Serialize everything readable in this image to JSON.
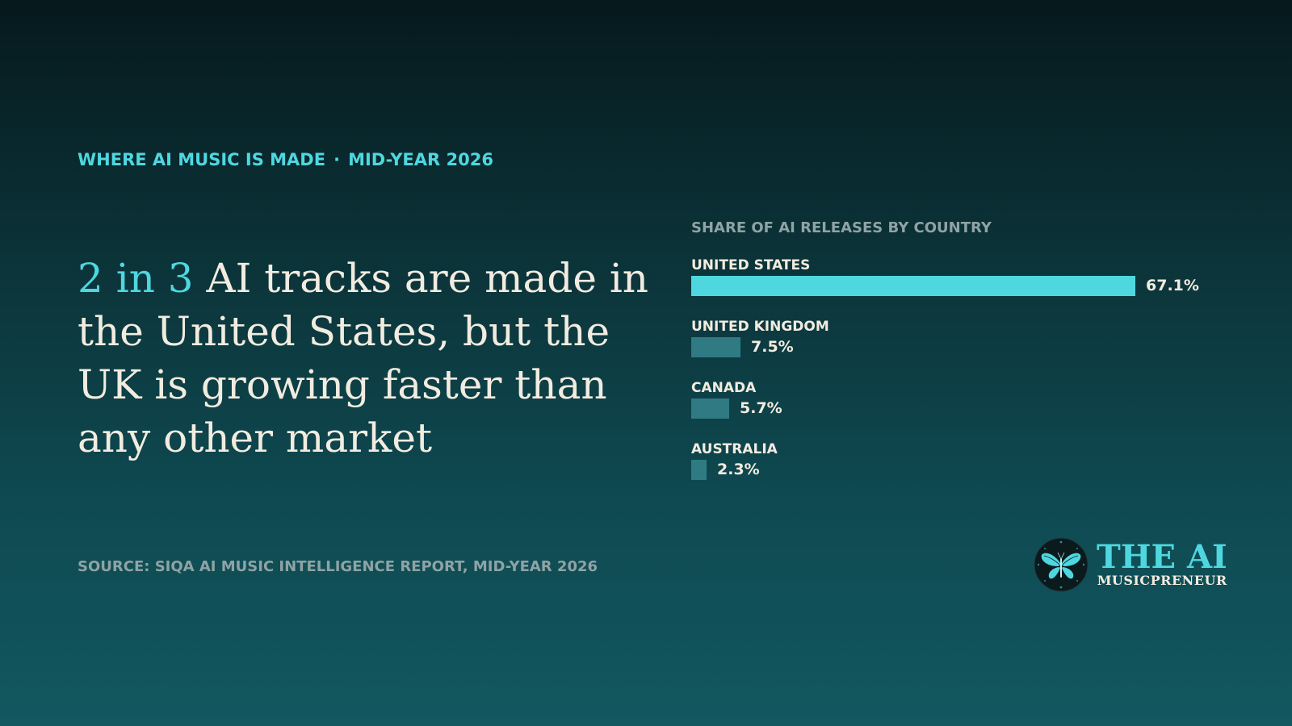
{
  "header": {
    "kicker_left": "WHERE AI MUSIC IS MADE",
    "kicker_sep": "·",
    "kicker_right": "MID-YEAR 2026"
  },
  "headline": {
    "accent": "2 in 3",
    "rest": " AI tracks are made in the United States, but the UK is growing faster than any other market"
  },
  "source": "SOURCE: SIQA AI MUSIC INTELLIGENCE REPORT, MID-YEAR 2026",
  "chart_data": {
    "type": "bar",
    "orientation": "horizontal",
    "title": "SHARE OF AI RELEASES BY COUNTRY",
    "categories": [
      "UNITED STATES",
      "UNITED KINGDOM",
      "CANADA",
      "AUSTRALIA"
    ],
    "values": [
      67.1,
      7.5,
      5.7,
      2.3
    ],
    "value_labels": [
      "67.1%",
      "7.5%",
      "5.7%",
      "2.3%"
    ],
    "xlim": [
      0,
      67.1
    ],
    "grid": false,
    "colors": {
      "highlight": "#4fd7e0",
      "default": "#307b83"
    }
  },
  "logo": {
    "main": "THE AI",
    "sub": "MUSICPRENEUR",
    "icon": "butterfly-icon"
  },
  "colors": {
    "accent": "#4fd7e0",
    "text": "#f2ece0",
    "muted": "#8fa3a5"
  }
}
